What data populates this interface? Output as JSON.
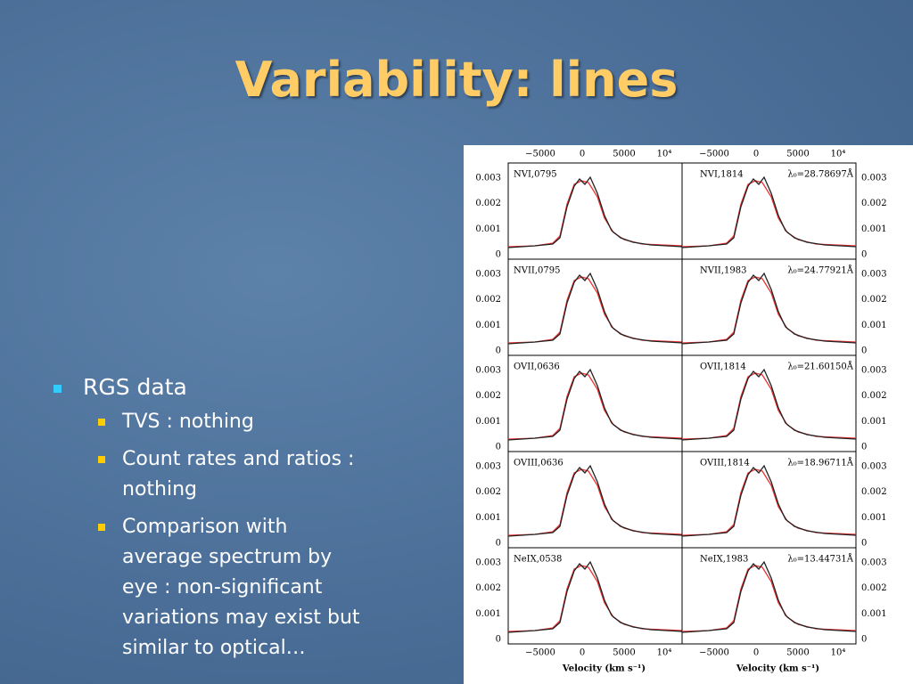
{
  "title": "Variability: lines",
  "bullets": [
    {
      "text": "RGS data",
      "sub": [
        "TVS : nothing",
        "Count rates and ratios : nothing",
        "Comparison with average spectrum by eye : non-significant variations may exist but similar to optical…"
      ]
    }
  ],
  "figure": {
    "x_ticks": [
      "−5000",
      "0",
      "5000",
      "10⁴"
    ],
    "x_label": "Velocity (km s⁻¹)",
    "y_ticks": [
      "0",
      "0.001",
      "0.002",
      "0.003"
    ],
    "panels": [
      {
        "left": "NVI,0795",
        "right": "NVI,1814",
        "lambda": "λ₀=28.78697Å"
      },
      {
        "left": "NVII,0795",
        "right": "NVII,1983",
        "lambda": "λ₀=24.77921Å"
      },
      {
        "left": "OVII,0636",
        "right": "OVII,1814",
        "lambda": "λ₀=21.60150Å"
      },
      {
        "left": "OVIII,0636",
        "right": "OVIII,1814",
        "lambda": "λ₀=18.96711Å"
      },
      {
        "left": "NeIX,0538",
        "right": "NeIX,1983",
        "lambda": "λ₀=13.44731Å"
      }
    ]
  }
}
